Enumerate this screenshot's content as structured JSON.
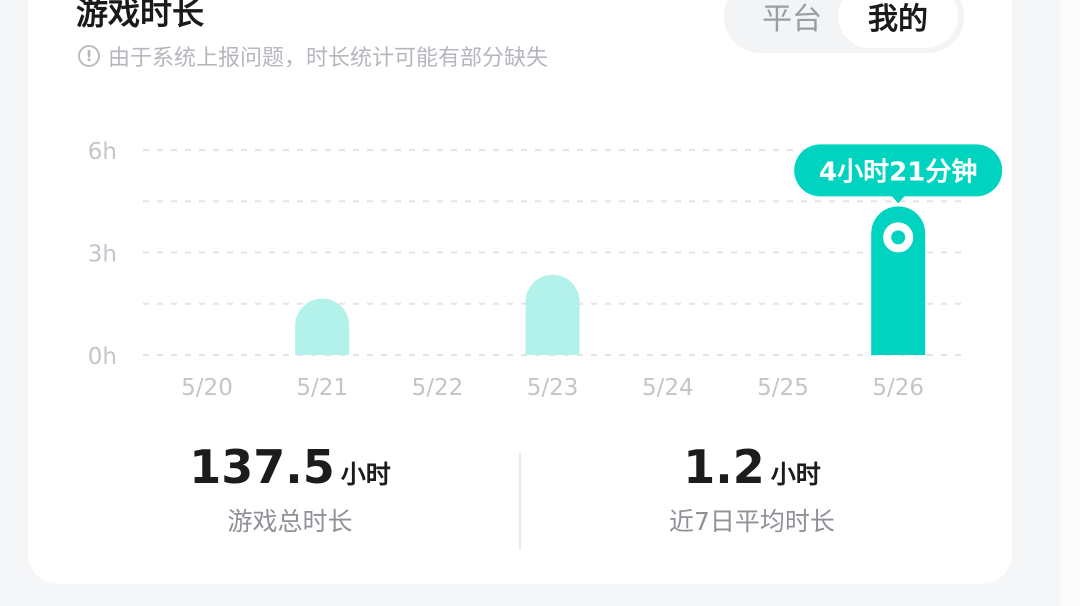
{
  "header": {
    "title": "游戏时长",
    "notice": "由于系统上报问题，时长统计可能有部分缺失",
    "notice_icon": "exclamation-circle-icon"
  },
  "toggle": {
    "options": [
      "平台",
      "我的"
    ],
    "selected": "我的"
  },
  "colors": {
    "accent": "#00d4c0",
    "bar_light": "#b3f2ea",
    "grid": "#e3e4e6"
  },
  "chart_data": {
    "type": "bar",
    "categories": [
      "5/20",
      "5/21",
      "5/22",
      "5/23",
      "5/24",
      "5/25",
      "5/26"
    ],
    "values": [
      0,
      1.65,
      0,
      2.35,
      0,
      0,
      4.35
    ],
    "yticks": [
      "0h",
      "3h",
      "6h"
    ],
    "ylim": [
      0,
      6
    ],
    "grid": true,
    "highlight_index": 6,
    "tooltip": "4小时21分钟"
  },
  "stats": [
    {
      "value": "137.5",
      "unit": "小时",
      "label": "游戏总时长"
    },
    {
      "value": "1.2",
      "unit": "小时",
      "label": "近7日平均时长"
    }
  ]
}
